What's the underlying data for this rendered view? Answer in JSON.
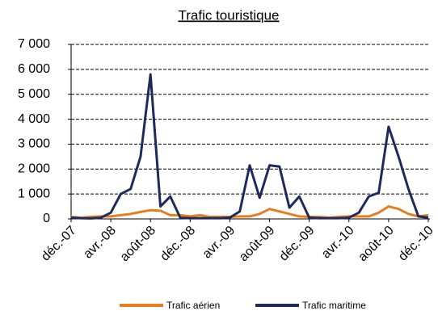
{
  "chart_data": {
    "type": "line",
    "title": "Trafic touristique",
    "categories": [
      "déc.-07",
      null,
      null,
      null,
      "avr.-08",
      null,
      null,
      null,
      "août-08",
      null,
      null,
      null,
      "déc.-08",
      null,
      null,
      null,
      "avr.-09",
      null,
      null,
      null,
      "août-09",
      null,
      null,
      null,
      "déc.-09",
      null,
      null,
      null,
      "avr.-10",
      null,
      null,
      null,
      "août-10",
      null,
      null,
      null,
      "déc.-10"
    ],
    "series": [
      {
        "name": "Trafic aérien",
        "color": "#e87d1e",
        "values": [
          80,
          50,
          80,
          100,
          100,
          150,
          200,
          280,
          350,
          330,
          150,
          150,
          100,
          150,
          80,
          80,
          80,
          100,
          100,
          200,
          400,
          300,
          200,
          100,
          80,
          80,
          50,
          80,
          100,
          100,
          100,
          250,
          500,
          400,
          200,
          100,
          150
        ]
      },
      {
        "name": "Trafic maritime",
        "color": "#1f2a5c",
        "values": [
          50,
          30,
          20,
          50,
          250,
          1000,
          1200,
          2500,
          5800,
          500,
          900,
          50,
          30,
          30,
          30,
          30,
          50,
          300,
          2150,
          850,
          2150,
          2100,
          450,
          900,
          50,
          30,
          30,
          30,
          50,
          250,
          900,
          1050,
          3700,
          2500,
          1200,
          100,
          50
        ]
      }
    ],
    "ylim": [
      0,
      7000
    ],
    "yticks": [
      0,
      {
        "value": 1000,
        "label": "1 000"
      },
      {
        "value": 2000,
        "label": "2 000"
      },
      {
        "value": 3000,
        "label": "3 000"
      },
      {
        "value": 4000,
        "label": "4 000"
      },
      {
        "value": 5000,
        "label": "5 000"
      },
      {
        "value": 6000,
        "label": "6 000"
      },
      {
        "value": 7000,
        "label": "7 000"
      }
    ],
    "grid": true,
    "legend": "bottom"
  }
}
